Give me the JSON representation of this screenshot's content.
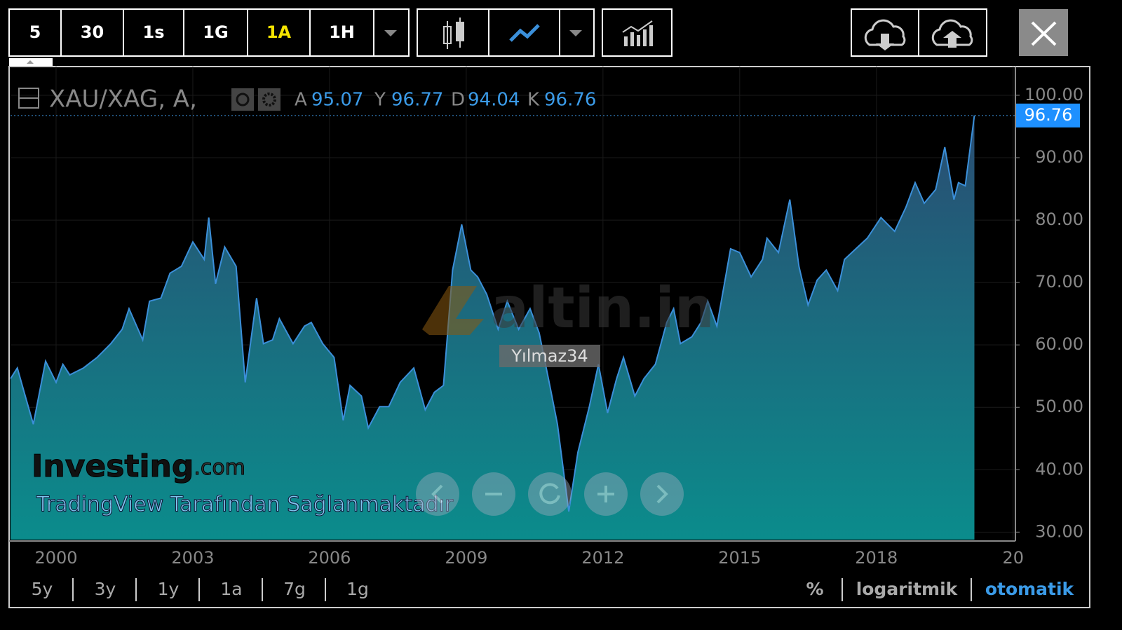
{
  "toolbar": {
    "intervals": [
      "5",
      "30",
      "1s",
      "1G",
      "1A",
      "1H"
    ],
    "active_interval": 4
  },
  "ranges": [
    "5y",
    "3y",
    "1y",
    "1a",
    "7g",
    "1g"
  ],
  "scale_options": [
    "%",
    "logaritmik",
    "otomatik"
  ],
  "watermarks": {
    "site": "altin.in",
    "user": "Yılmaz34",
    "brand": "Investing",
    "brand_suffix": ".com",
    "provider": "TradingView Tarafından Sağlanmaktadır"
  },
  "legend": {
    "symbol": "XAU/XAG, A,",
    "fields": [
      {
        "key": "A",
        "value": "95.07"
      },
      {
        "key": "Y",
        "value": "96.77"
      },
      {
        "key": "D",
        "value": "94.04"
      },
      {
        "key": "K",
        "value": "96.76"
      }
    ]
  },
  "chart_data": {
    "type": "area",
    "x": [
      1999.0,
      1999.15,
      1999.3,
      1999.5,
      1999.77,
      2000.0,
      2000.15,
      2000.3,
      2000.6,
      2000.9,
      2001.2,
      2001.45,
      2001.6,
      2001.9,
      2002.05,
      2002.3,
      2002.5,
      2002.75,
      2003.0,
      2003.25,
      2003.35,
      2003.5,
      2003.7,
      2003.95,
      2004.15,
      2004.4,
      2004.55,
      2004.75,
      2004.9,
      2005.2,
      2005.45,
      2005.6,
      2005.85,
      2006.1,
      2006.3,
      2006.45,
      2006.7,
      2006.85,
      2007.1,
      2007.3,
      2007.55,
      2007.85,
      2008.1,
      2008.3,
      2008.5,
      2008.7,
      2008.9,
      2009.1,
      2009.25,
      2009.45,
      2009.7,
      2009.9,
      2010.15,
      2010.4,
      2010.6,
      2010.85,
      2011.0,
      2011.25,
      2011.45,
      2011.7,
      2011.9,
      2012.1,
      2012.3,
      2012.45,
      2012.7,
      2012.9,
      2013.15,
      2013.4,
      2013.55,
      2013.7,
      2013.95,
      2014.15,
      2014.3,
      2014.5,
      2014.8,
      2015.0,
      2015.25,
      2015.5,
      2015.6,
      2015.85,
      2016.1,
      2016.3,
      2016.5,
      2016.7,
      2016.9,
      2017.15,
      2017.3,
      2017.55,
      2017.8,
      2018.1,
      2018.4,
      2018.65,
      2018.85,
      2019.05,
      2019.3,
      2019.5,
      2019.7,
      2019.8,
      2019.95,
      2020.15
    ],
    "series": [
      {
        "name": "XAU/XAG",
        "color": "#3b8fd9",
        "values": [
          54.6,
          56.3,
          52.4,
          47.3,
          57.4,
          54.0,
          56.9,
          55.2,
          56.3,
          58.0,
          60.2,
          62.5,
          65.8,
          60.8,
          67.0,
          67.5,
          71.5,
          72.6,
          76.5,
          73.7,
          80.4,
          69.8,
          75.7,
          72.6,
          54.0,
          67.5,
          60.2,
          60.8,
          64.2,
          60.2,
          63.0,
          63.6,
          60.2,
          58.0,
          47.9,
          53.5,
          51.8,
          46.7,
          50.1,
          50.1,
          54.0,
          56.3,
          49.6,
          52.4,
          53.5,
          72.0,
          79.3,
          72.0,
          70.9,
          68.1,
          62.5,
          67.0,
          62.5,
          65.8,
          61.9,
          52.9,
          47.3,
          33.3,
          42.8,
          50.1,
          56.9,
          49.1,
          54.6,
          58.0,
          51.8,
          54.6,
          56.9,
          63.6,
          65.8,
          60.2,
          61.3,
          63.6,
          67.0,
          63.0,
          75.4,
          74.8,
          70.9,
          73.7,
          77.1,
          74.8,
          83.3,
          72.6,
          66.4,
          70.4,
          72.0,
          68.7,
          73.7,
          75.4,
          77.1,
          80.4,
          78.2,
          82.1,
          86.0,
          82.7,
          84.9,
          91.7,
          83.3,
          86.0,
          85.5,
          96.76
        ]
      }
    ],
    "xlim": [
      1999.0,
      2021.05
    ],
    "xticks": [
      2000,
      2003,
      2006,
      2009,
      2012,
      2015,
      2018,
      {
        "value": 2021,
        "label": "20"
      }
    ],
    "ylim": [
      28.8,
      104.6
    ],
    "yticks": [
      {
        "value": 30,
        "label": "30.00"
      },
      {
        "value": 40,
        "label": "40.00"
      },
      {
        "value": 50,
        "label": "50.00"
      },
      {
        "value": 60,
        "label": "60.00"
      },
      {
        "value": 70,
        "label": "70.00"
      },
      {
        "value": 80,
        "label": "80.00"
      },
      {
        "value": 90,
        "label": "90.00"
      },
      {
        "value": 100,
        "label": "100.00"
      }
    ],
    "grid": true
  }
}
